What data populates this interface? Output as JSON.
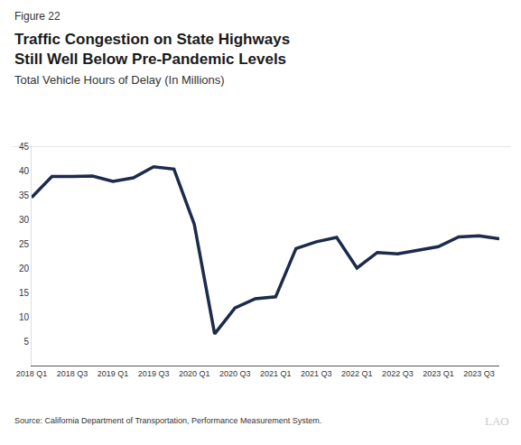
{
  "chart_data": {
    "type": "line",
    "figure_label": "Figure 22",
    "title": [
      "Traffic Congestion on State Highways",
      "Still Well Below Pre-Pandemic Levels"
    ],
    "subtitle": "Total Vehicle Hours of Delay (In Millions)",
    "source": "Source: California Department of Transportation, Performance Measurement System.",
    "logo": "LAO",
    "categories": [
      "2018 Q1",
      null,
      "2018 Q3",
      null,
      "2019 Q1",
      null,
      "2019 Q3",
      null,
      "2020 Q1",
      null,
      "2020 Q3",
      null,
      "2021 Q1",
      null,
      "2021 Q3",
      null,
      "2022 Q1",
      null,
      "2022 Q3",
      null,
      "2023 Q1",
      null,
      "2023 Q3",
      null
    ],
    "values": [
      34.5,
      38.8,
      38.8,
      38.9,
      37.8,
      38.5,
      40.8,
      40.3,
      29.0,
      6.5,
      11.8,
      13.7,
      14.1,
      24.0,
      25.4,
      26.3,
      20.0,
      23.2,
      22.9,
      23.6,
      24.4,
      26.4,
      26.6,
      26.0
    ],
    "color": "#1c2b4b",
    "ylim": [
      0,
      45
    ],
    "yticks": [
      5,
      10,
      15,
      20,
      25,
      30,
      35,
      40,
      45
    ],
    "grid": false
  }
}
